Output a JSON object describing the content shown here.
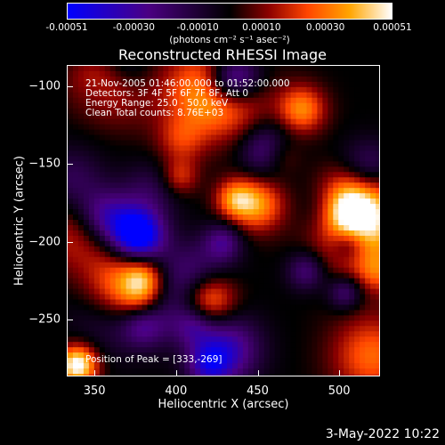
{
  "chart_data": {
    "type": "heatmap",
    "title": "Reconstructed RHESSI Image",
    "xlabel": "Heliocentric X (arcsec)",
    "ylabel": "Heliocentric Y (arcsec)",
    "xlim": [
      333,
      525
    ],
    "ylim": [
      -287,
      -86
    ],
    "x_ticks": [
      "350",
      "400",
      "450",
      "500"
    ],
    "x_tick_values": [
      350,
      400,
      450,
      500
    ],
    "y_ticks": [
      "−100",
      "−150",
      "−200",
      "−250"
    ],
    "y_tick_values": [
      -100,
      -150,
      -200,
      -250
    ],
    "colorbar": {
      "tick_labels": [
        "-0.00051",
        "-0.00030",
        "-0.00010",
        "0.00010",
        "0.00030",
        "0.00051"
      ],
      "tick_values": [
        -0.00051,
        -0.0003,
        -0.0001,
        0.0001,
        0.0003,
        0.00051
      ],
      "range": [
        -0.00051,
        0.00051
      ],
      "units": "(photons cm⁻² s⁻¹ asec⁻²)",
      "colors": [
        "#0000ff",
        "#4b0082",
        "#000000",
        "#8b0000",
        "#ff4500",
        "#ffa500",
        "#ffffff"
      ]
    },
    "annotations": [
      "21-Nov-2005 01:46:00.000 to 01:52:00.000",
      "Detectors: 3F 4F 5F 6F 7F 8F, Att 0",
      "Energy Range: 25.0 - 50.0 keV",
      "Clean     Total counts: 8.76E+03",
      "Position of Peak = [333,-269]"
    ],
    "peak_position": [
      333,
      -269
    ],
    "grid": false
  },
  "footer": {
    "date": "3-May-2022 10:22"
  }
}
